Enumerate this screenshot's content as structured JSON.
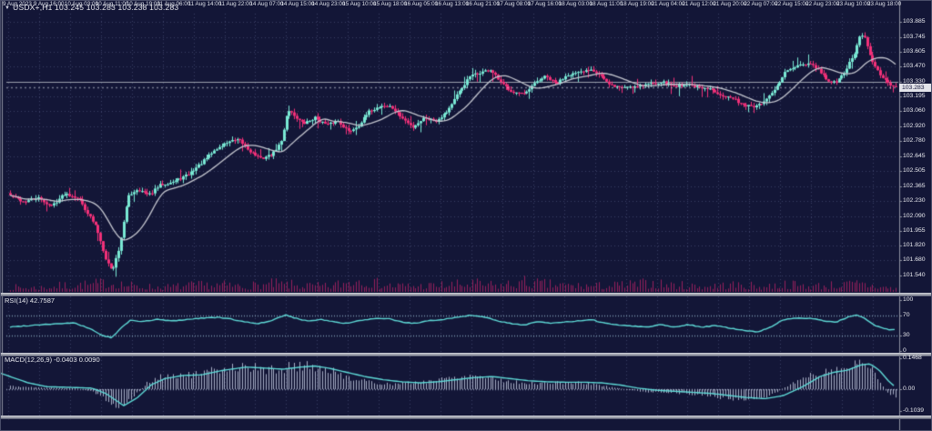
{
  "window": {
    "title": "USDX+,H1  103.245 103.283 103.238 103.283",
    "symbol": "USDX+",
    "timeframe": "H1"
  },
  "colors": {
    "background": "#131637",
    "grid": "#3b4066",
    "bull_candle": "#79e8d4",
    "bear_candle": "#f23079",
    "ma_line": "#c4c6cf",
    "volume": "#96205c",
    "indicator_line": "#5ed9d6",
    "macd_histogram": "#a8aec6",
    "axis_text": "#e8e9ee",
    "price_tag_bg": "#e2e3e9",
    "separator": "#9ea1ac",
    "hline": "#9aa0ac"
  },
  "main_pane": {
    "current_price": "103.283",
    "horizontal_line_price": 103.33
  },
  "rsi_pane": {
    "label": "RSI(14) 42.7587"
  },
  "macd_pane": {
    "label": "MACD(12,26,9) -0.0403 0.0090"
  },
  "chart_data": {
    "type": "candlestick",
    "symbol": "USDX+",
    "timeframe": "H1",
    "last_ohlc": {
      "open": 103.245,
      "high": 103.283,
      "low": 103.238,
      "close": 103.283
    },
    "price_ticks": [
      "103.885",
      "103.745",
      "103.605",
      "103.470",
      "103.330",
      "103.195",
      "103.060",
      "102.920",
      "102.780",
      "102.645",
      "102.505",
      "102.365",
      "102.230",
      "102.090",
      "101.955",
      "101.820",
      "101.680",
      "101.540"
    ],
    "main_ylim": [
      101.39,
      103.96
    ],
    "rsi": {
      "period": 14,
      "last": 42.7587,
      "ticks": [
        "100",
        "70",
        "30",
        "0"
      ],
      "levels": [
        70,
        30
      ],
      "ylim": [
        0,
        100
      ]
    },
    "macd": {
      "params": "12,26,9",
      "last_macd": -0.0403,
      "last_signal": 0.009,
      "ticks": [
        "0.1468",
        "0.00",
        "-0.1039"
      ],
      "ylim": [
        -0.1252,
        0.1554
      ]
    },
    "time_labels": [
      "9 Aug 2023",
      "9 Aug 16:00",
      "10 Aug 03:00",
      "10 Aug 11:00",
      "10 Aug 19:00",
      "11 Aug 06:00",
      "11 Aug 14:00",
      "11 Aug 22:00",
      "14 Aug 07:00",
      "14 Aug 15:00",
      "14 Aug 23:00",
      "15 Aug 10:00",
      "15 Aug 18:00",
      "16 Aug 05:00",
      "16 Aug 13:00",
      "16 Aug 21:00",
      "17 Aug 08:00",
      "17 Aug 16:00",
      "18 Aug 03:00",
      "18 Aug 11:00",
      "18 Aug 19:00",
      "21 Aug 04:00",
      "21 Aug 12:00",
      "21 Aug 20:00",
      "22 Aug 07:00",
      "22 Aug 15:00",
      "22 Aug 23:00",
      "23 Aug 10:00",
      "23 Aug 18:00"
    ],
    "price_anchors": [
      [
        10,
        102.28
      ],
      [
        25,
        102.22
      ],
      [
        40,
        102.26
      ],
      [
        55,
        102.18
      ],
      [
        70,
        102.3
      ],
      [
        85,
        102.26
      ],
      [
        95,
        102.12
      ],
      [
        105,
        101.98
      ],
      [
        115,
        101.7
      ],
      [
        122,
        101.58
      ],
      [
        130,
        101.8
      ],
      [
        140,
        102.28
      ],
      [
        150,
        102.34
      ],
      [
        162,
        102.28
      ],
      [
        175,
        102.38
      ],
      [
        190,
        102.41
      ],
      [
        205,
        102.47
      ],
      [
        220,
        102.58
      ],
      [
        235,
        102.7
      ],
      [
        250,
        102.78
      ],
      [
        262,
        102.79
      ],
      [
        272,
        102.7
      ],
      [
        285,
        102.62
      ],
      [
        298,
        102.66
      ],
      [
        308,
        102.78
      ],
      [
        315,
        103.08
      ],
      [
        322,
        103.02
      ],
      [
        332,
        102.94
      ],
      [
        345,
        103.0
      ],
      [
        358,
        102.93
      ],
      [
        370,
        102.97
      ],
      [
        382,
        102.87
      ],
      [
        392,
        102.92
      ],
      [
        405,
        103.06
      ],
      [
        418,
        103.11
      ],
      [
        428,
        103.1
      ],
      [
        440,
        103.0
      ],
      [
        452,
        102.91
      ],
      [
        465,
        103.0
      ],
      [
        478,
        102.97
      ],
      [
        490,
        103.06
      ],
      [
        502,
        103.22
      ],
      [
        515,
        103.38
      ],
      [
        528,
        103.42
      ],
      [
        538,
        103.44
      ],
      [
        550,
        103.31
      ],
      [
        562,
        103.24
      ],
      [
        575,
        103.21
      ],
      [
        588,
        103.33
      ],
      [
        598,
        103.38
      ],
      [
        610,
        103.31
      ],
      [
        622,
        103.4
      ],
      [
        635,
        103.41
      ],
      [
        648,
        103.45
      ],
      [
        658,
        103.4
      ],
      [
        668,
        103.3
      ],
      [
        680,
        103.28
      ],
      [
        695,
        103.29
      ],
      [
        710,
        103.31
      ],
      [
        725,
        103.33
      ],
      [
        740,
        103.29
      ],
      [
        755,
        103.31
      ],
      [
        768,
        103.27
      ],
      [
        780,
        103.26
      ],
      [
        792,
        103.21
      ],
      [
        805,
        103.17
      ],
      [
        818,
        103.11
      ],
      [
        830,
        103.1
      ],
      [
        842,
        103.17
      ],
      [
        852,
        103.28
      ],
      [
        862,
        103.43
      ],
      [
        875,
        103.47
      ],
      [
        888,
        103.5
      ],
      [
        898,
        103.44
      ],
      [
        908,
        103.34
      ],
      [
        918,
        103.32
      ],
      [
        928,
        103.44
      ],
      [
        938,
        103.6
      ],
      [
        944,
        103.76
      ],
      [
        950,
        103.73
      ],
      [
        956,
        103.52
      ],
      [
        963,
        103.44
      ],
      [
        970,
        103.35
      ],
      [
        977,
        103.3
      ],
      [
        983,
        103.283
      ]
    ],
    "rsi_anchors": [
      [
        10,
        47
      ],
      [
        45,
        52
      ],
      [
        80,
        55
      ],
      [
        98,
        44
      ],
      [
        112,
        30
      ],
      [
        122,
        26
      ],
      [
        132,
        45
      ],
      [
        142,
        60
      ],
      [
        158,
        58
      ],
      [
        172,
        62
      ],
      [
        188,
        59
      ],
      [
        205,
        62
      ],
      [
        222,
        65
      ],
      [
        238,
        66
      ],
      [
        252,
        63
      ],
      [
        268,
        57
      ],
      [
        282,
        54
      ],
      [
        296,
        58
      ],
      [
        312,
        71
      ],
      [
        324,
        64
      ],
      [
        338,
        59
      ],
      [
        352,
        62
      ],
      [
        366,
        57
      ],
      [
        380,
        54
      ],
      [
        395,
        60
      ],
      [
        410,
        63
      ],
      [
        425,
        64
      ],
      [
        440,
        57
      ],
      [
        455,
        54
      ],
      [
        470,
        59
      ],
      [
        485,
        62
      ],
      [
        500,
        66
      ],
      [
        515,
        70
      ],
      [
        530,
        68
      ],
      [
        545,
        59
      ],
      [
        560,
        54
      ],
      [
        575,
        51
      ],
      [
        590,
        58
      ],
      [
        605,
        54
      ],
      [
        620,
        57
      ],
      [
        635,
        59
      ],
      [
        650,
        61
      ],
      [
        665,
        54
      ],
      [
        680,
        51
      ],
      [
        695,
        49
      ],
      [
        710,
        47
      ],
      [
        725,
        52
      ],
      [
        740,
        47
      ],
      [
        755,
        52
      ],
      [
        770,
        47
      ],
      [
        785,
        50
      ],
      [
        800,
        45
      ],
      [
        815,
        41
      ],
      [
        830,
        37
      ],
      [
        845,
        46
      ],
      [
        860,
        62
      ],
      [
        875,
        64
      ],
      [
        890,
        64
      ],
      [
        905,
        59
      ],
      [
        918,
        57
      ],
      [
        930,
        66
      ],
      [
        940,
        71
      ],
      [
        950,
        63
      ],
      [
        960,
        50
      ],
      [
        970,
        44
      ],
      [
        977,
        41
      ],
      [
        983,
        42.76
      ]
    ],
    "macd_signal_anchors": [
      [
        0,
        0.075
      ],
      [
        30,
        0.03
      ],
      [
        50,
        0.012
      ],
      [
        80,
        0.008
      ],
      [
        100,
        0.005
      ],
      [
        115,
        -0.02
      ],
      [
        135,
        -0.078
      ],
      [
        150,
        -0.04
      ],
      [
        165,
        0.02
      ],
      [
        180,
        0.05
      ],
      [
        200,
        0.065
      ],
      [
        220,
        0.068
      ],
      [
        245,
        0.09
      ],
      [
        270,
        0.105
      ],
      [
        290,
        0.1
      ],
      [
        310,
        0.095
      ],
      [
        330,
        0.105
      ],
      [
        345,
        0.11
      ],
      [
        360,
        0.1
      ],
      [
        380,
        0.08
      ],
      [
        400,
        0.06
      ],
      [
        420,
        0.045
      ],
      [
        440,
        0.035
      ],
      [
        460,
        0.03
      ],
      [
        480,
        0.035
      ],
      [
        500,
        0.045
      ],
      [
        520,
        0.055
      ],
      [
        540,
        0.06
      ],
      [
        560,
        0.05
      ],
      [
        580,
        0.04
      ],
      [
        600,
        0.035
      ],
      [
        620,
        0.033
      ],
      [
        640,
        0.033
      ],
      [
        660,
        0.03
      ],
      [
        680,
        0.02
      ],
      [
        700,
        0.005
      ],
      [
        720,
        -0.005
      ],
      [
        740,
        -0.01
      ],
      [
        760,
        -0.015
      ],
      [
        780,
        -0.02
      ],
      [
        800,
        -0.03
      ],
      [
        820,
        -0.04
      ],
      [
        840,
        -0.045
      ],
      [
        860,
        -0.03
      ],
      [
        880,
        0.01
      ],
      [
        900,
        0.06
      ],
      [
        915,
        0.08
      ],
      [
        930,
        0.09
      ],
      [
        945,
        0.115
      ],
      [
        955,
        0.12
      ],
      [
        965,
        0.09
      ],
      [
        975,
        0.04
      ],
      [
        983,
        0.009
      ]
    ],
    "macd_hist_anchors": [
      [
        0,
        0.02
      ],
      [
        20,
        0.012
      ],
      [
        40,
        0.008
      ],
      [
        60,
        0.006
      ],
      [
        80,
        0.005
      ],
      [
        100,
        -0.01
      ],
      [
        115,
        -0.05
      ],
      [
        130,
        -0.09
      ],
      [
        145,
        -0.04
      ],
      [
        160,
        0.03
      ],
      [
        175,
        0.06
      ],
      [
        190,
        0.07
      ],
      [
        205,
        0.07
      ],
      [
        220,
        0.075
      ],
      [
        240,
        0.1
      ],
      [
        258,
        0.115
      ],
      [
        275,
        0.11
      ],
      [
        290,
        0.095
      ],
      [
        305,
        0.1
      ],
      [
        320,
        0.115
      ],
      [
        338,
        0.12
      ],
      [
        352,
        0.105
      ],
      [
        368,
        0.08
      ],
      [
        385,
        0.055
      ],
      [
        400,
        0.04
      ],
      [
        415,
        0.03
      ],
      [
        430,
        0.025
      ],
      [
        445,
        0.03
      ],
      [
        460,
        0.035
      ],
      [
        475,
        0.045
      ],
      [
        490,
        0.055
      ],
      [
        505,
        0.065
      ],
      [
        520,
        0.07
      ],
      [
        535,
        0.06
      ],
      [
        550,
        0.045
      ],
      [
        565,
        0.035
      ],
      [
        580,
        0.03
      ],
      [
        595,
        0.03
      ],
      [
        610,
        0.032
      ],
      [
        625,
        0.033
      ],
      [
        640,
        0.03
      ],
      [
        655,
        0.022
      ],
      [
        670,
        0.01
      ],
      [
        685,
        0.0
      ],
      [
        700,
        -0.01
      ],
      [
        715,
        -0.015
      ],
      [
        730,
        -0.018
      ],
      [
        745,
        -0.02
      ],
      [
        760,
        -0.025
      ],
      [
        775,
        -0.03
      ],
      [
        790,
        -0.04
      ],
      [
        805,
        -0.05
      ],
      [
        820,
        -0.055
      ],
      [
        835,
        -0.05
      ],
      [
        850,
        -0.02
      ],
      [
        865,
        0.02
      ],
      [
        880,
        0.05
      ],
      [
        895,
        0.08
      ],
      [
        910,
        0.09
      ],
      [
        925,
        0.1
      ],
      [
        938,
        0.13
      ],
      [
        948,
        0.145
      ],
      [
        958,
        0.09
      ],
      [
        966,
        0.03
      ],
      [
        972,
        -0.01
      ],
      [
        978,
        -0.03
      ],
      [
        983,
        -0.0403
      ]
    ],
    "volume_envelope": [
      [
        0,
        9
      ],
      [
        40,
        8
      ],
      [
        70,
        12
      ],
      [
        100,
        14
      ],
      [
        120,
        18
      ],
      [
        150,
        10
      ],
      [
        180,
        9
      ],
      [
        210,
        12
      ],
      [
        240,
        13
      ],
      [
        270,
        11
      ],
      [
        300,
        15
      ],
      [
        330,
        12
      ],
      [
        360,
        10
      ],
      [
        395,
        26
      ],
      [
        410,
        16
      ],
      [
        430,
        12
      ],
      [
        460,
        11
      ],
      [
        490,
        13
      ],
      [
        520,
        15
      ],
      [
        545,
        12
      ],
      [
        575,
        18
      ],
      [
        600,
        14
      ],
      [
        625,
        12
      ],
      [
        655,
        11
      ],
      [
        685,
        13
      ],
      [
        715,
        16
      ],
      [
        745,
        12
      ],
      [
        775,
        11
      ],
      [
        805,
        13
      ],
      [
        835,
        10
      ],
      [
        860,
        14
      ],
      [
        890,
        11
      ],
      [
        920,
        13
      ],
      [
        945,
        15
      ],
      [
        965,
        10
      ],
      [
        983,
        6
      ]
    ]
  }
}
